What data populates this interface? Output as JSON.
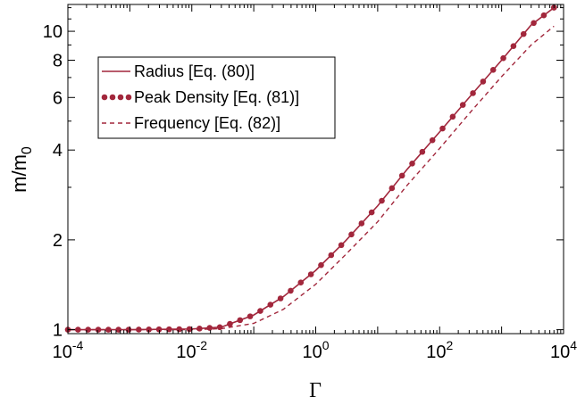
{
  "chart_data": {
    "type": "line",
    "title": "",
    "xlabel": "Γ",
    "ylabel": "m/m",
    "ylabel_subscript": "0",
    "x_scale": "log",
    "y_scale": "log",
    "xlim": [
      0.0001,
      10000
    ],
    "ylim": [
      0.97,
      12.3
    ],
    "grid": false,
    "legend_position": "upper-left",
    "x_ticks": [
      {
        "value": 0.0001,
        "base": "10",
        "exp": "-4"
      },
      {
        "value": 0.01,
        "base": "10",
        "exp": "-2"
      },
      {
        "value": 1,
        "base": "10",
        "exp": "0"
      },
      {
        "value": 100,
        "base": "10",
        "exp": "2"
      },
      {
        "value": 10000,
        "base": "10",
        "exp": "4"
      }
    ],
    "y_ticks": [
      {
        "value": 1,
        "label": "1"
      },
      {
        "value": 2,
        "label": "2"
      },
      {
        "value": 4,
        "label": "4"
      },
      {
        "value": 6,
        "label": "6"
      },
      {
        "value": 8,
        "label": "8"
      },
      {
        "value": 10,
        "label": "10"
      }
    ],
    "series": [
      {
        "name": "Radius [Eq. (80)]",
        "style": "solid",
        "color": "#a2273c",
        "x": [
          0.0001,
          0.001,
          0.01,
          0.03,
          0.1,
          0.3,
          1,
          3,
          10,
          30,
          100,
          300,
          1000,
          3000,
          7000
        ],
        "y": [
          1.0,
          1.0,
          1.005,
          1.02,
          1.12,
          1.29,
          1.58,
          1.98,
          2.6,
          3.45,
          4.6,
          6.0,
          8.0,
          10.5,
          12.0
        ]
      },
      {
        "name": "Peak Density [Eq. (81)]",
        "style": "dotted",
        "color": "#a2273c",
        "x": [
          0.0001,
          0.001,
          0.01,
          0.03,
          0.1,
          0.3,
          1,
          3,
          10,
          30,
          100,
          300,
          1000,
          3000,
          7000
        ],
        "y": [
          1.0,
          1.0,
          1.005,
          1.02,
          1.12,
          1.29,
          1.58,
          1.98,
          2.6,
          3.45,
          4.6,
          6.0,
          8.0,
          10.5,
          12.0
        ]
      },
      {
        "name": "Frequency [Eq. (82)]",
        "style": "dashed",
        "color": "#a2273c",
        "x": [
          0.0001,
          0.001,
          0.01,
          0.03,
          0.1,
          0.3,
          1,
          3,
          10,
          30,
          100,
          300,
          1000,
          3000,
          7000
        ],
        "y": [
          1.0,
          1.0,
          1.0,
          1.008,
          1.05,
          1.17,
          1.42,
          1.78,
          2.3,
          3.05,
          4.05,
          5.3,
          7.05,
          9.0,
          10.4
        ]
      }
    ]
  }
}
